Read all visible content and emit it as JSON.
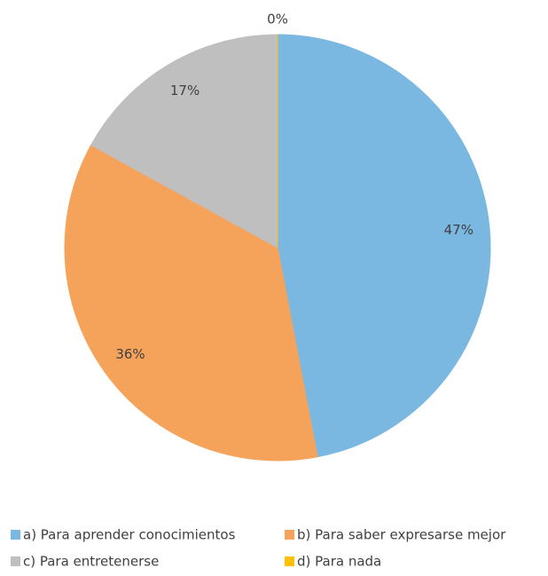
{
  "chart_data": {
    "type": "pie",
    "categories": [
      "a) Para aprender conocimientos",
      "b) Para saber expresarse mejor",
      "c) Para entretenerse",
      "d) Para nada"
    ],
    "values": [
      47,
      36,
      17,
      0
    ],
    "value_labels": [
      "47%",
      "36%",
      "17%",
      "0%"
    ],
    "colors": [
      "#7ab8e2",
      "#f5a35a",
      "#bfbfbf",
      "#ffc000"
    ],
    "legend": "bottom"
  }
}
